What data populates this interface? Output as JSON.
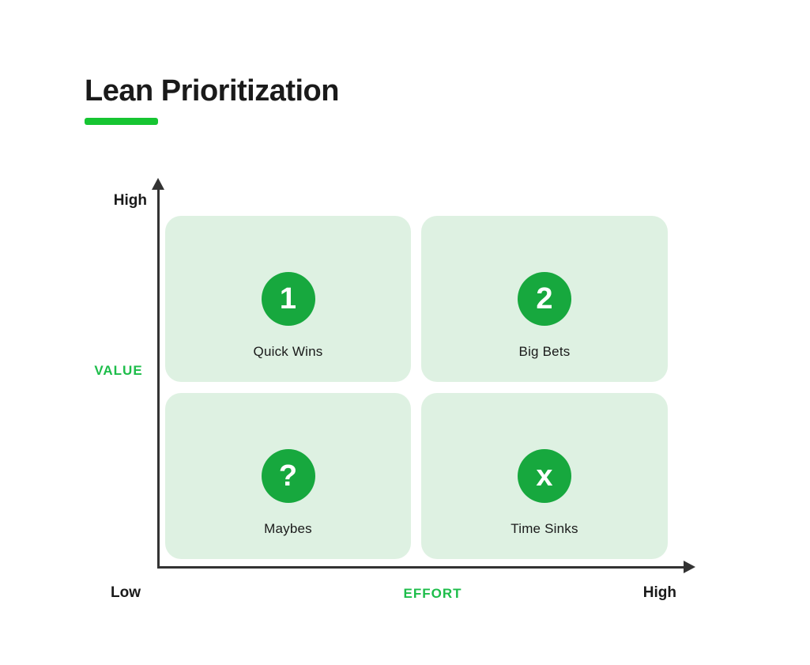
{
  "title": {
    "text": "Lean Prioritization"
  },
  "colors": {
    "accent_green": "#16c532",
    "label_green": "#1dbd4a",
    "circle_green": "#17a83e",
    "quadrant_fill": "#def1e2",
    "axis_color": "#333333",
    "text_dark": "#1a1a1a",
    "page_bg": "#ffffff"
  },
  "axes": {
    "y_top_label": "High",
    "y_axis_label": "VALUE",
    "origin_label": "Low",
    "x_axis_label": "EFFORT",
    "x_right_label": "High"
  },
  "quadrants": [
    {
      "badge": "1",
      "label": "Quick Wins"
    },
    {
      "badge": "2",
      "label": "Big Bets"
    },
    {
      "badge": "?",
      "label": "Maybes"
    },
    {
      "badge": "x",
      "label": "Time Sinks"
    }
  ]
}
